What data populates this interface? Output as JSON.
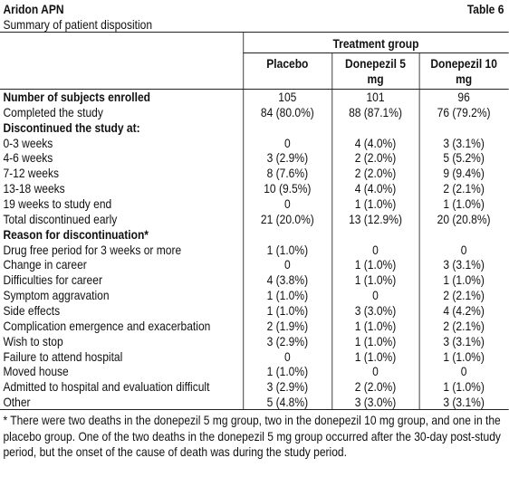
{
  "header": {
    "title": "Aridon APN",
    "table_label": "Table 6",
    "subtitle": "Summary of patient disposition"
  },
  "table": {
    "group_header": "Treatment group",
    "columns": [
      "Placebo",
      "Donepezil 5 mg",
      "Donepezil 10 mg"
    ],
    "rows": [
      [
        "Number of subjects enrolled",
        "105",
        "101",
        "96"
      ],
      [
        "Completed the study",
        "84 (80.0%)",
        "88 (87.1%)",
        "76 (79.2%)"
      ],
      [
        "Discontinued the study at:"
      ],
      [
        "0-3 weeks",
        "0",
        "4 (4.0%)",
        "3 (3.1%)"
      ],
      [
        "4-6 weeks",
        "3 (2.9%)",
        "2 (2.0%)",
        "5 (5.2%)"
      ],
      [
        "7-12 weeks",
        "8 (7.6%)",
        "2 (2.0%)",
        "9 (9.4%)"
      ],
      [
        "13-18 weeks",
        "10 (9.5%)",
        "4 (4.0%)",
        "2 (2.1%)"
      ],
      [
        "19 weeks to study end",
        "0",
        "1 (1.0%)",
        "1 (1.0%)"
      ],
      [
        "Total discontinued early",
        "21 (20.0%)",
        "13 (12.9%)",
        "20 (20.8%)"
      ],
      [
        "Reason for discontinuation*"
      ],
      [
        "Drug free period for 3 weeks or more",
        "1 (1.0%)",
        "0",
        "0"
      ],
      [
        "Change in career",
        "0",
        "1 (1.0%)",
        "3 (3.1%)"
      ],
      [
        "Difficulties for career",
        "4 (3.8%)",
        "1 (1.0%)",
        "1 (1.0%)"
      ],
      [
        "Symptom aggravation",
        "1 (1.0%)",
        "0",
        "2 (2.1%)"
      ],
      [
        "Side effects",
        "1 (1.0%)",
        "3 (3.0%)",
        "4 (4.2%)"
      ],
      [
        "Complication emergence and exacerbation",
        "2 (1.9%)",
        "1 (1.0%)",
        "2 (2.1%)"
      ],
      [
        "Wish to stop",
        "3 (2.9%)",
        "1 (1.0%)",
        "3 (3.1%)"
      ],
      [
        "Failure to attend hospital",
        "0",
        "1 (1.0%)",
        "1 (1.0%)"
      ],
      [
        "Moved house",
        "1 (1.0%)",
        "0",
        "0"
      ],
      [
        "Admitted to hospital and evaluation difficult",
        "3 (2.9%)",
        "2 (2.0%)",
        "1 (1.0%)"
      ],
      [
        "Other",
        "5 (4.8%)",
        "3 (3.0%)",
        "3 (3.1%)"
      ]
    ]
  },
  "footnote": "* There were two deaths in the donepezil 5 mg group, two in the donepezil 10 mg group, and one in the placebo group. One of the two deaths in the donepezil 5 mg group occurred after the 30-day post-study period, but the onset of the cause of death was during the study period."
}
